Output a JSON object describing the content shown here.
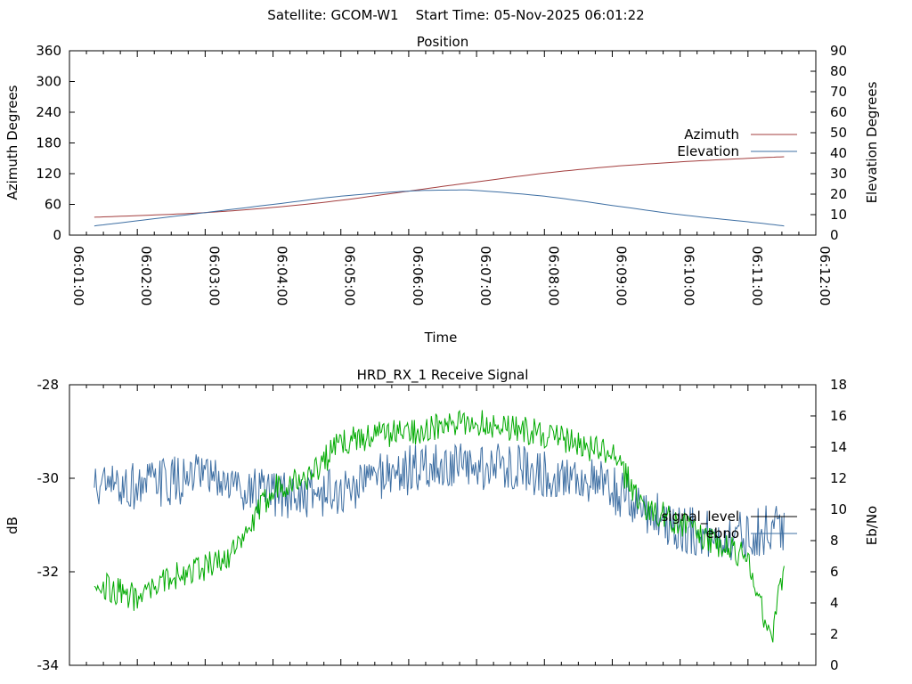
{
  "header": {
    "title": "Satellite: GCOM-W1    Start Time: 05-Nov-2025 06:01:22"
  },
  "chart_data": [
    {
      "type": "line",
      "title": "Position",
      "xlabel": "Time",
      "ylabel": "Azimuth Degrees",
      "y2label": "Elevation Degrees",
      "xlim": [
        "06:01:00",
        "06:12:00"
      ],
      "ylim": [
        0,
        360
      ],
      "y2lim": [
        0,
        90
      ],
      "x_ticks": [
        "06:01:00",
        "06:02:00",
        "06:03:00",
        "06:04:00",
        "06:05:00",
        "06:06:00",
        "06:07:00",
        "06:08:00",
        "06:09:00",
        "06:10:00",
        "06:11:00",
        "06:12:00"
      ],
      "y_ticks": [
        0,
        60,
        120,
        180,
        240,
        300,
        360
      ],
      "y2_ticks": [
        0,
        10,
        20,
        30,
        40,
        50,
        60,
        70,
        80,
        90
      ],
      "legend_position": "right",
      "grid": false,
      "series": [
        {
          "name": "Azimuth",
          "axis": "y",
          "color": "#a33e3e",
          "x": [
            "06:01:22",
            "06:02:00",
            "06:03:00",
            "06:04:00",
            "06:05:00",
            "06:06:00",
            "06:07:00",
            "06:08:00",
            "06:09:00",
            "06:10:00",
            "06:11:00",
            "06:11:32"
          ],
          "values": [
            35,
            38,
            44,
            54,
            68,
            86,
            104,
            121,
            134,
            143,
            150,
            153
          ]
        },
        {
          "name": "Elevation",
          "axis": "y2",
          "color": "#3e6fa3",
          "x": [
            "06:01:22",
            "06:02:00",
            "06:03:00",
            "06:04:00",
            "06:05:00",
            "06:06:00",
            "06:06:40",
            "06:07:00",
            "06:08:00",
            "06:09:00",
            "06:10:00",
            "06:11:00",
            "06:11:32"
          ],
          "values": [
            4.5,
            7,
            11,
            15,
            19,
            21.5,
            22,
            21.8,
            19,
            14.5,
            10,
            6.5,
            4.5
          ]
        }
      ]
    },
    {
      "type": "line",
      "title": "HRD_RX_1 Receive Signal",
      "xlabel": "",
      "ylabel": "dB",
      "y2label": "Eb/No",
      "ylim": [
        -34,
        -28
      ],
      "y2lim": [
        0,
        18
      ],
      "y_ticks": [
        -34,
        -32,
        -30,
        -28
      ],
      "y2_ticks": [
        0,
        2,
        4,
        6,
        8,
        10,
        12,
        14,
        16,
        18
      ],
      "legend_position": "right",
      "grid": false,
      "series": [
        {
          "name": "signal_level",
          "axis": "y",
          "color": "#000000",
          "x": [],
          "values": []
        },
        {
          "name": "ebno",
          "axis": "y2",
          "color": "#3e6fa3",
          "x": [
            "06:01:22",
            "06:02:00",
            "06:02:30",
            "06:03:00",
            "06:03:30",
            "06:04:00",
            "06:04:30",
            "06:05:00",
            "06:05:30",
            "06:06:00",
            "06:06:30",
            "06:07:00",
            "06:07:30",
            "06:08:00",
            "06:08:30",
            "06:09:00",
            "06:09:30",
            "06:10:00",
            "06:10:30",
            "06:11:00",
            "06:11:32"
          ],
          "values": [
            11.4,
            11.5,
            11.8,
            12.0,
            11.5,
            10.8,
            11.0,
            11.0,
            12.2,
            12.5,
            12.8,
            12.6,
            12.9,
            12.3,
            12.1,
            11.2,
            10.0,
            8.8,
            8.2,
            8.4,
            9.0
          ],
          "noise": 1.6
        },
        {
          "name": "",
          "axis": "y2",
          "color": "#00aa00",
          "x": [
            "06:01:22",
            "06:01:40",
            "06:02:00",
            "06:02:20",
            "06:02:40",
            "06:03:00",
            "06:03:30",
            "06:04:00",
            "06:04:30",
            "06:05:00",
            "06:05:30",
            "06:06:00",
            "06:06:30",
            "06:07:00",
            "06:07:30",
            "06:08:00",
            "06:08:30",
            "06:09:00",
            "06:09:30",
            "06:10:00",
            "06:10:30",
            "06:11:00",
            "06:11:20",
            "06:11:32"
          ],
          "values": [
            5.5,
            4.8,
            4.3,
            5.2,
            6.0,
            6.3,
            7.5,
            11.5,
            12.0,
            14.3,
            14.8,
            15.0,
            15.3,
            15.6,
            15.3,
            14.8,
            14.2,
            13.5,
            10.0,
            9.2,
            7.8,
            7.0,
            1.5,
            6.5
          ],
          "noise": 0.9
        }
      ]
    }
  ]
}
